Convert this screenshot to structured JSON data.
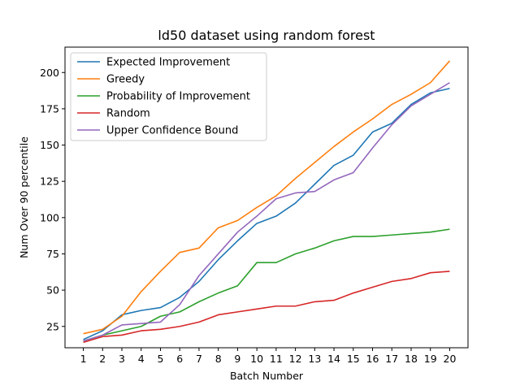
{
  "chart_data": {
    "type": "line",
    "title": "ld50 dataset using random forest",
    "xlabel": "Batch Number",
    "ylabel": "Num Over 90 percentile",
    "x": [
      1,
      2,
      3,
      4,
      5,
      6,
      7,
      8,
      9,
      10,
      11,
      12,
      13,
      14,
      15,
      16,
      17,
      18,
      19,
      20
    ],
    "xlim": [
      0.05,
      20.95
    ],
    "ylim": [
      10.3,
      217.5
    ],
    "yticks": [
      25,
      50,
      75,
      100,
      125,
      150,
      175,
      200
    ],
    "grid": false,
    "legend_position": "top-left",
    "series": [
      {
        "name": "Expected Improvement",
        "color": "#1f77b4",
        "values": [
          16,
          22,
          33,
          36,
          38,
          45,
          56,
          71,
          84,
          96,
          101,
          110,
          123,
          136,
          143,
          159,
          165,
          178,
          186,
          189
        ]
      },
      {
        "name": "Greedy",
        "color": "#ff7f0e",
        "values": [
          20,
          23,
          32,
          49,
          63,
          76,
          79,
          93,
          98,
          107,
          115,
          127,
          138,
          149,
          159,
          168,
          178,
          185,
          193,
          208
        ]
      },
      {
        "name": "Probability of Improvement",
        "color": "#2ca02c",
        "values": [
          15,
          19,
          22,
          25,
          32,
          35,
          42,
          48,
          53,
          69,
          69,
          75,
          79,
          84,
          87,
          87,
          88,
          89,
          90,
          92
        ]
      },
      {
        "name": "Random",
        "color": "#d62728",
        "values": [
          14,
          18,
          19,
          22,
          23,
          25,
          28,
          33,
          35,
          37,
          39,
          39,
          42,
          43,
          48,
          52,
          56,
          58,
          62,
          63
        ]
      },
      {
        "name": "Upper Confidence Bound",
        "color": "#9467bd",
        "values": [
          15,
          19,
          26,
          27,
          28,
          40,
          60,
          75,
          90,
          101,
          113,
          117,
          118,
          126,
          131,
          148,
          164,
          177,
          185,
          193
        ]
      }
    ]
  }
}
